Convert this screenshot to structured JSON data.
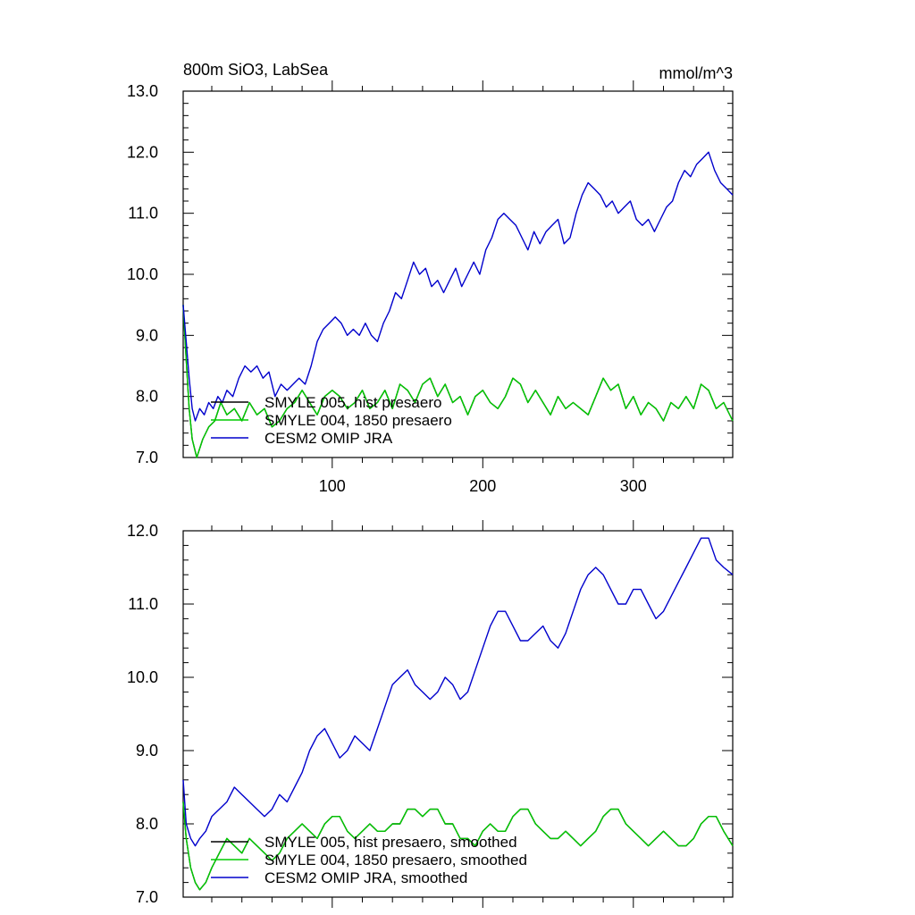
{
  "chart_data": [
    {
      "type": "line",
      "title": "800m SiO3, LabSea",
      "units": "mmol/m^3",
      "xlim": [
        1,
        366
      ],
      "ylim": [
        7.0,
        13.0
      ],
      "yticks": [
        "7.0",
        "8.0",
        "9.0",
        "10.0",
        "11.0",
        "12.0",
        "13.0"
      ],
      "xticks": [
        "100",
        "200",
        "300"
      ],
      "grid": false,
      "legend_position": "bottom-left",
      "series": [
        {
          "name": "SMYLE 005, hist presaero",
          "color": "#000000",
          "x": [
            1,
            3,
            5,
            7,
            10,
            14,
            18,
            22,
            26,
            30,
            35,
            40,
            45,
            50,
            55,
            60,
            65,
            70,
            75,
            80,
            85,
            90,
            95,
            100,
            105,
            110,
            115,
            120,
            125,
            130,
            135,
            140,
            145,
            150,
            155,
            160,
            165,
            170,
            175,
            180,
            185,
            190,
            195,
            200,
            205,
            210,
            215,
            220,
            225,
            230,
            235,
            240,
            245,
            250,
            255,
            260,
            265,
            270,
            275,
            280,
            285,
            290,
            295,
            300,
            305,
            310,
            315,
            320,
            325,
            330,
            335,
            340,
            345,
            350,
            355,
            360,
            366
          ],
          "y": [
            9.5,
            8.6,
            7.8,
            7.3,
            7.0,
            7.3,
            7.5,
            7.6,
            7.9,
            7.7,
            7.8,
            7.6,
            7.9,
            7.7,
            7.8,
            7.5,
            7.6,
            7.8,
            7.9,
            8.1,
            7.9,
            7.7,
            8.0,
            8.1,
            8.0,
            7.8,
            7.9,
            8.1,
            7.8,
            7.9,
            8.1,
            7.8,
            8.2,
            8.1,
            7.9,
            8.2,
            8.3,
            8.0,
            8.2,
            7.9,
            8.0,
            7.7,
            8.0,
            8.1,
            7.9,
            7.8,
            8.0,
            8.3,
            8.2,
            7.9,
            8.1,
            7.9,
            7.7,
            8.0,
            7.8,
            7.9,
            7.8,
            7.7,
            8.0,
            8.3,
            8.1,
            8.2,
            7.8,
            8.0,
            7.7,
            7.9,
            7.8,
            7.6,
            7.9,
            7.8,
            8.0,
            7.8,
            8.2,
            8.1,
            7.8,
            7.9,
            7.6
          ]
        },
        {
          "name": "SMYLE 004, 1850 presaero",
          "color": "#00cc00",
          "x": [
            1,
            3,
            5,
            7,
            10,
            14,
            18,
            22,
            26,
            30,
            35,
            40,
            45,
            50,
            55,
            60,
            65,
            70,
            75,
            80,
            85,
            90,
            95,
            100,
            105,
            110,
            115,
            120,
            125,
            130,
            135,
            140,
            145,
            150,
            155,
            160,
            165,
            170,
            175,
            180,
            185,
            190,
            195,
            200,
            205,
            210,
            215,
            220,
            225,
            230,
            235,
            240,
            245,
            250,
            255,
            260,
            265,
            270,
            275,
            280,
            285,
            290,
            295,
            300,
            305,
            310,
            315,
            320,
            325,
            330,
            335,
            340,
            345,
            350,
            355,
            360,
            366
          ],
          "y": [
            9.5,
            8.6,
            7.8,
            7.3,
            7.0,
            7.3,
            7.5,
            7.6,
            7.9,
            7.7,
            7.8,
            7.6,
            7.9,
            7.7,
            7.8,
            7.5,
            7.6,
            7.8,
            7.9,
            8.1,
            7.9,
            7.7,
            8.0,
            8.1,
            8.0,
            7.8,
            7.9,
            8.1,
            7.8,
            7.9,
            8.1,
            7.8,
            8.2,
            8.1,
            7.9,
            8.2,
            8.3,
            8.0,
            8.2,
            7.9,
            8.0,
            7.7,
            8.0,
            8.1,
            7.9,
            7.8,
            8.0,
            8.3,
            8.2,
            7.9,
            8.1,
            7.9,
            7.7,
            8.0,
            7.8,
            7.9,
            7.8,
            7.7,
            8.0,
            8.3,
            8.1,
            8.2,
            7.8,
            8.0,
            7.7,
            7.9,
            7.8,
            7.6,
            7.9,
            7.8,
            8.0,
            7.8,
            8.2,
            8.1,
            7.8,
            7.9,
            7.6
          ]
        },
        {
          "name": "CESM2 OMIP JRA",
          "color": "#0000cc",
          "x": [
            1,
            3,
            5,
            7,
            9,
            12,
            15,
            18,
            21,
            24,
            27,
            30,
            34,
            38,
            42,
            46,
            50,
            54,
            58,
            62,
            66,
            70,
            74,
            78,
            82,
            86,
            90,
            94,
            98,
            102,
            106,
            110,
            114,
            118,
            122,
            126,
            130,
            134,
            138,
            142,
            146,
            150,
            154,
            158,
            162,
            166,
            170,
            174,
            178,
            182,
            186,
            190,
            194,
            198,
            202,
            206,
            210,
            214,
            218,
            222,
            226,
            230,
            234,
            238,
            242,
            246,
            250,
            254,
            258,
            262,
            266,
            270,
            274,
            278,
            282,
            286,
            290,
            294,
            298,
            302,
            306,
            310,
            314,
            318,
            322,
            326,
            330,
            334,
            338,
            342,
            346,
            350,
            354,
            358,
            362,
            366
          ],
          "y": [
            9.5,
            8.9,
            8.3,
            7.8,
            7.6,
            7.8,
            7.7,
            7.9,
            7.8,
            8.0,
            7.9,
            8.1,
            8.0,
            8.3,
            8.5,
            8.4,
            8.5,
            8.3,
            8.4,
            8.0,
            8.2,
            8.1,
            8.2,
            8.3,
            8.2,
            8.5,
            8.9,
            9.1,
            9.2,
            9.3,
            9.2,
            9.0,
            9.1,
            9.0,
            9.2,
            9.0,
            8.9,
            9.2,
            9.4,
            9.7,
            9.6,
            9.9,
            10.2,
            10.0,
            10.1,
            9.8,
            9.9,
            9.7,
            9.9,
            10.1,
            9.8,
            10.0,
            10.2,
            10.0,
            10.4,
            10.6,
            10.9,
            11.0,
            10.9,
            10.8,
            10.6,
            10.4,
            10.7,
            10.5,
            10.7,
            10.8,
            10.9,
            10.5,
            10.6,
            11.0,
            11.3,
            11.5,
            11.4,
            11.3,
            11.1,
            11.2,
            11.0,
            11.1,
            11.2,
            10.9,
            10.8,
            10.9,
            10.7,
            10.9,
            11.1,
            11.2,
            11.5,
            11.7,
            11.6,
            11.8,
            11.9,
            12.0,
            11.7,
            11.5,
            11.4,
            11.3
          ]
        }
      ]
    },
    {
      "type": "line",
      "title": "",
      "xlim": [
        1,
        366
      ],
      "ylim": [
        7.0,
        12.0
      ],
      "yticks": [
        "7.0",
        "8.0",
        "9.0",
        "10.0",
        "11.0",
        "12.0"
      ],
      "grid": false,
      "legend_position": "bottom-left",
      "series": [
        {
          "name": "SMYLE 005, hist presaero, smoothed",
          "color": "#000000",
          "x": [
            1,
            3,
            6,
            9,
            12,
            16,
            20,
            25,
            30,
            35,
            40,
            45,
            50,
            55,
            60,
            65,
            70,
            75,
            80,
            85,
            90,
            95,
            100,
            105,
            110,
            115,
            120,
            125,
            130,
            135,
            140,
            145,
            150,
            155,
            160,
            165,
            170,
            175,
            180,
            185,
            190,
            195,
            200,
            205,
            210,
            215,
            220,
            225,
            230,
            235,
            240,
            245,
            250,
            255,
            260,
            265,
            270,
            275,
            280,
            285,
            290,
            295,
            300,
            305,
            310,
            315,
            320,
            325,
            330,
            335,
            340,
            345,
            350,
            355,
            360,
            366
          ],
          "y": [
            8.3,
            7.8,
            7.4,
            7.2,
            7.1,
            7.2,
            7.4,
            7.6,
            7.8,
            7.7,
            7.6,
            7.8,
            7.7,
            7.6,
            7.5,
            7.6,
            7.8,
            7.9,
            8.0,
            7.9,
            7.8,
            8.0,
            8.1,
            8.1,
            7.9,
            7.8,
            7.9,
            8.0,
            7.9,
            7.9,
            8.0,
            8.0,
            8.2,
            8.2,
            8.1,
            8.2,
            8.2,
            8.0,
            8.0,
            7.8,
            7.8,
            7.7,
            7.9,
            8.0,
            7.9,
            7.9,
            8.1,
            8.2,
            8.2,
            8.0,
            7.9,
            7.8,
            7.8,
            7.9,
            7.8,
            7.7,
            7.8,
            7.9,
            8.1,
            8.2,
            8.2,
            8.0,
            7.9,
            7.8,
            7.7,
            7.8,
            7.9,
            7.8,
            7.7,
            7.7,
            7.8,
            8.0,
            8.1,
            8.1,
            7.9,
            7.7
          ]
        },
        {
          "name": "SMYLE 004, 1850 presaero, smoothed",
          "color": "#00cc00",
          "x": [
            1,
            3,
            6,
            9,
            12,
            16,
            20,
            25,
            30,
            35,
            40,
            45,
            50,
            55,
            60,
            65,
            70,
            75,
            80,
            85,
            90,
            95,
            100,
            105,
            110,
            115,
            120,
            125,
            130,
            135,
            140,
            145,
            150,
            155,
            160,
            165,
            170,
            175,
            180,
            185,
            190,
            195,
            200,
            205,
            210,
            215,
            220,
            225,
            230,
            235,
            240,
            245,
            250,
            255,
            260,
            265,
            270,
            275,
            280,
            285,
            290,
            295,
            300,
            305,
            310,
            315,
            320,
            325,
            330,
            335,
            340,
            345,
            350,
            355,
            360,
            366
          ],
          "y": [
            8.3,
            7.8,
            7.4,
            7.2,
            7.1,
            7.2,
            7.4,
            7.6,
            7.8,
            7.7,
            7.6,
            7.8,
            7.7,
            7.6,
            7.5,
            7.6,
            7.8,
            7.9,
            8.0,
            7.9,
            7.8,
            8.0,
            8.1,
            8.1,
            7.9,
            7.8,
            7.9,
            8.0,
            7.9,
            7.9,
            8.0,
            8.0,
            8.2,
            8.2,
            8.1,
            8.2,
            8.2,
            8.0,
            8.0,
            7.8,
            7.8,
            7.7,
            7.9,
            8.0,
            7.9,
            7.9,
            8.1,
            8.2,
            8.2,
            8.0,
            7.9,
            7.8,
            7.8,
            7.9,
            7.8,
            7.7,
            7.8,
            7.9,
            8.1,
            8.2,
            8.2,
            8.0,
            7.9,
            7.8,
            7.7,
            7.8,
            7.9,
            7.8,
            7.7,
            7.7,
            7.8,
            8.0,
            8.1,
            8.1,
            7.9,
            7.7
          ]
        },
        {
          "name": "CESM2 OMIP JRA, smoothed",
          "color": "#0000cc",
          "x": [
            1,
            3,
            6,
            9,
            12,
            16,
            20,
            25,
            30,
            35,
            40,
            45,
            50,
            55,
            60,
            65,
            70,
            75,
            80,
            85,
            90,
            95,
            100,
            105,
            110,
            115,
            120,
            125,
            130,
            135,
            140,
            145,
            150,
            155,
            160,
            165,
            170,
            175,
            180,
            185,
            190,
            195,
            200,
            205,
            210,
            215,
            220,
            225,
            230,
            235,
            240,
            245,
            250,
            255,
            260,
            265,
            270,
            275,
            280,
            285,
            290,
            295,
            300,
            305,
            310,
            315,
            320,
            325,
            330,
            335,
            340,
            345,
            350,
            355,
            360,
            366
          ],
          "y": [
            8.6,
            8.0,
            7.8,
            7.7,
            7.8,
            7.9,
            8.1,
            8.2,
            8.3,
            8.5,
            8.4,
            8.3,
            8.2,
            8.1,
            8.2,
            8.4,
            8.3,
            8.5,
            8.7,
            9.0,
            9.2,
            9.3,
            9.1,
            8.9,
            9.0,
            9.2,
            9.1,
            9.0,
            9.3,
            9.6,
            9.9,
            10.0,
            10.1,
            9.9,
            9.8,
            9.7,
            9.8,
            10.0,
            9.9,
            9.7,
            9.8,
            10.1,
            10.4,
            10.7,
            10.9,
            10.9,
            10.7,
            10.5,
            10.5,
            10.6,
            10.7,
            10.5,
            10.4,
            10.6,
            10.9,
            11.2,
            11.4,
            11.5,
            11.4,
            11.2,
            11.0,
            11.0,
            11.2,
            11.2,
            11.0,
            10.8,
            10.9,
            11.1,
            11.3,
            11.5,
            11.7,
            11.9,
            11.9,
            11.6,
            11.5,
            11.4
          ]
        }
      ]
    }
  ]
}
